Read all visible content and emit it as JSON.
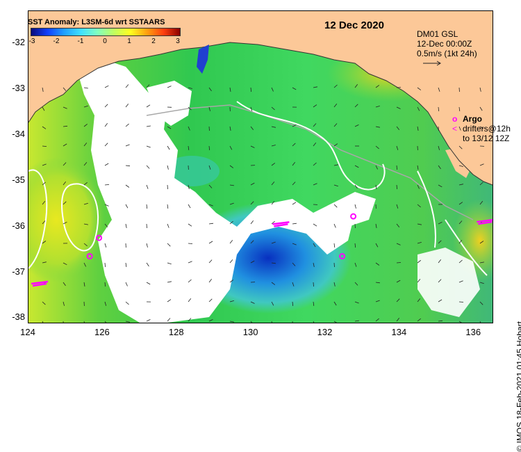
{
  "colorbar": {
    "title": "SST Anomaly: L3SM-6d wrt SSTAARS",
    "ticks": [
      "-3",
      "-2",
      "-1",
      "0",
      "1",
      "2",
      "3"
    ],
    "min": -3,
    "max": 3
  },
  "date_label": "12 Dec 2020",
  "current_legend": {
    "line1": "DM01 GSL",
    "line2": "12-Dec 00:00Z",
    "line3": "0.5m/s (1kt 24h)"
  },
  "argo_legend": {
    "symbol": "o",
    "label": "Argo",
    "drifter_symbol": "<",
    "drifter_line1": "drifters@12h",
    "drifter_line2": "to 13/12 12Z"
  },
  "credit": "© IMOS 18-Feb-2021 01:45 Hobart",
  "axes": {
    "x_ticks": [
      "124",
      "126",
      "128",
      "130",
      "132",
      "134",
      "136"
    ],
    "y_ticks": [
      "-32",
      "-33",
      "-34",
      "-35",
      "-36",
      "-37",
      "-38"
    ],
    "xlim": [
      124,
      136.5
    ],
    "ylim": [
      -38.1,
      -31.3
    ]
  },
  "colors": {
    "land": "#fcc898",
    "cloud": "#ffffff",
    "argo_marker": "#ff00ff",
    "contour": "#ffffff"
  },
  "argo_floats": [
    {
      "lon": 125.65,
      "lat": -36.65
    },
    {
      "lon": 125.9,
      "lat": -36.25
    },
    {
      "lon": 132.75,
      "lat": -35.78
    },
    {
      "lon": 132.45,
      "lat": -36.65
    }
  ],
  "drifters": [
    {
      "lon": 124.3,
      "lat": -37.25
    },
    {
      "lon": 130.8,
      "lat": -35.95
    },
    {
      "lon": 136.3,
      "lat": -35.9
    }
  ]
}
